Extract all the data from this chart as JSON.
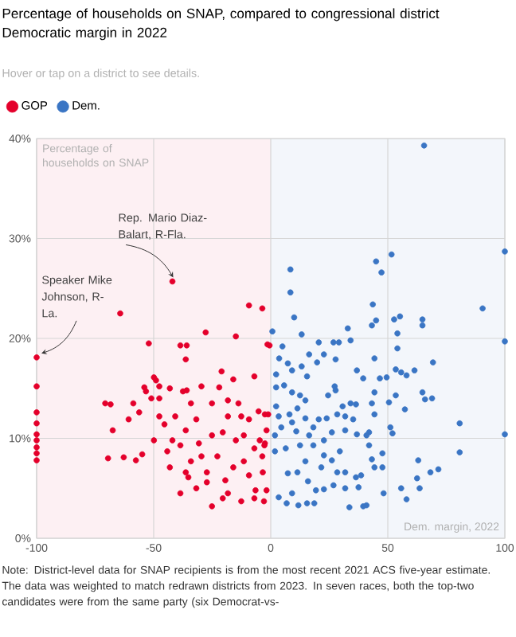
{
  "chart_data": {
    "type": "scatter",
    "title": "Percentage of households on SNAP, compared to congressional district Democratic margin in 2022",
    "subtitle": "Hover or tap on a district to see details.",
    "xlabel": "Dem. margin, 2022",
    "ylabel": "Percentage of households on SNAP",
    "xlim": [
      -100,
      100
    ],
    "ylim": [
      0,
      40
    ],
    "xticks": [
      -100,
      -50,
      0,
      50,
      100
    ],
    "yticks": [
      {
        "value": 0,
        "label": "0%"
      },
      {
        "value": 10,
        "label": "10%"
      },
      {
        "value": 20,
        "label": "20%"
      },
      {
        "value": 30,
        "label": "30%"
      },
      {
        "value": 40,
        "label": "40%"
      }
    ],
    "grid": true,
    "legend": "top left",
    "bands": [
      {
        "axis": "x",
        "from": -100,
        "to": 0,
        "color": "#fdf0f3"
      },
      {
        "axis": "x",
        "from": 0,
        "to": 100,
        "color": "#f3f6fb"
      }
    ],
    "annotations": [
      {
        "text": "Rep. Mario Diaz-Balart, R-Fla.",
        "x": -42,
        "y": 25.7
      },
      {
        "text": "Speaker Mike Johnson, R-La.",
        "x": -100,
        "y": 18.1
      },
      "Note: District-level data for SNAP recipients is from the most recent 2021 ACS five-year estimate. The data was weighted to match redrawn districts from 2023. In seven races, both the top-two candidates were from the same party (six Democrat-vs-"
    ],
    "series": [
      {
        "name": "GOP",
        "color": "#e4002b",
        "x": [
          -100,
          -100,
          -100,
          -100,
          -100,
          -100,
          -100,
          -100,
          -100,
          -42,
          -64.3,
          -52.1,
          -70.7,
          -68.4,
          -67.5,
          -69.5,
          -62.8,
          -57.6,
          -54.9,
          -60.7,
          -58.7,
          -56.2,
          -54,
          -53.3,
          -49.9,
          -49,
          -51,
          -47.6,
          -47.6,
          -43.1,
          -37.5,
          -35.9,
          -38.6,
          -35.9,
          -36.3,
          -27.8,
          -14.9,
          -9.3,
          -3.6,
          -1.4,
          -21,
          -16,
          -29.6,
          -7,
          -49.9,
          -44.2,
          -38.6,
          -35.2,
          -25.1,
          -20.5,
          -18.3,
          -12.6,
          -7,
          -2.9,
          -9.3,
          -11.5,
          -3.6,
          -4.7,
          -2.5,
          -2.5,
          -9.3,
          -13.8,
          -18.3,
          -25.1,
          -31.8,
          -36.3,
          -40.8,
          -45.4,
          -43.1,
          -29.6,
          -22.8,
          -27.3,
          -16,
          -34.1,
          -30.7,
          -25.1,
          -20.5,
          -14.9,
          -11.5,
          -38.6,
          -47.6,
          -34.1,
          -22,
          -18.3,
          -7,
          -27.3,
          -31.8,
          -19.4,
          -6.5,
          -36.3,
          -42,
          -12.6,
          -5.2,
          -0.5,
          -1.1,
          -1.8,
          -2.7,
          -3.4,
          -1.8
        ],
        "values": [
          18.1,
          15.2,
          12.6,
          11.5,
          10.4,
          9.8,
          9.1,
          8.5,
          7.8,
          25.7,
          22.5,
          19.5,
          13.5,
          13.4,
          10.8,
          8,
          8.1,
          7.8,
          8.4,
          11.9,
          13.5,
          12.6,
          15.1,
          14.7,
          16.1,
          15.8,
          14,
          14,
          15.2,
          15,
          14.7,
          14.8,
          19.3,
          19.3,
          17.9,
          20.6,
          20.2,
          23.3,
          23,
          19.4,
          16.7,
          15.9,
          15.2,
          16.2,
          9.8,
          8.7,
          4.5,
          6.1,
          3.2,
          4,
          4.5,
          3.7,
          4,
          3.7,
          6.3,
          7.7,
          8.2,
          9.8,
          9.5,
          12.4,
          11.9,
          13.5,
          12.2,
          13.5,
          11.9,
          10.8,
          12.2,
          11.4,
          7.1,
          8.2,
          8.2,
          6.6,
          7.1,
          7.7,
          9.5,
          10.3,
          10.6,
          9.8,
          10.3,
          9.3,
          12.2,
          13.5,
          15.1,
          13.8,
          9,
          5.6,
          5,
          5.8,
          4.8,
          6.6,
          9.8,
          12.2,
          12.7,
          19.3,
          12.4,
          10.8,
          9.3,
          6.6,
          4.8
        ]
      },
      {
        "name": "Dem.",
        "color": "#3a75c4",
        "x": [
          65.5,
          100,
          51.6,
          45,
          47.3,
          8.4,
          8.4,
          90.5,
          43.6,
          45,
          43.2,
          52.7,
          55.2,
          64.8,
          64.8,
          54.1,
          100,
          0.7,
          10,
          13.2,
          32.9,
          34.1,
          26.8,
          29.1,
          20.5,
          5,
          54.1,
          44.3,
          69.3,
          36.8,
          39.5,
          46.6,
          49.5,
          53.4,
          55.7,
          58,
          61.4,
          3.6,
          7.3,
          9.1,
          13.2,
          15.5,
          16.4,
          19.8,
          22.7,
          27.7,
          2.3,
          2.3,
          5.7,
          9.1,
          12.5,
          14.8,
          27.3,
          27.7,
          24.5,
          44.3,
          53.4,
          50.5,
          43.2,
          64.8,
          65.9,
          68.9,
          57.3,
          44.3,
          80.7,
          100,
          80.7,
          51.1,
          52,
          42,
          40.9,
          34.1,
          36.4,
          30.7,
          31.8,
          35.2,
          28.4,
          23.9,
          20.5,
          18.2,
          14.8,
          11.4,
          8,
          3.4,
          2.3,
          4.5,
          9.1,
          10.9,
          16.4,
          22.7,
          26.1,
          31.8,
          36.8,
          42,
          47.7,
          43.2,
          44.3,
          38.6,
          36.4,
          47.7,
          63,
          71.6,
          68.2,
          62.5,
          63.6,
          55.7,
          58,
          48.2,
          40.9,
          39.5,
          33.6,
          37.5,
          31.8,
          26.8,
          22.7,
          19.3,
          15.5,
          18.6,
          11.8,
          6.8,
          3.4,
          9.1,
          7.3,
          11.4,
          14.8,
          21.6,
          26.1,
          29.5,
          31.8,
          22.7,
          6.4,
          1.8,
          1.8,
          12.5,
          18.2,
          28.4,
          15.9
        ],
        "values": [
          39.3,
          28.7,
          28.4,
          27.7,
          26.6,
          26.9,
          24.6,
          23,
          23.4,
          21.8,
          21.3,
          21.9,
          22.2,
          21.9,
          21.3,
          20.5,
          19.7,
          20.7,
          22.1,
          20.4,
          21,
          19.8,
          19.6,
          19.6,
          19.6,
          19.2,
          19,
          18,
          17.6,
          16.8,
          16,
          16,
          16.1,
          16.9,
          16.6,
          16.3,
          16.8,
          18,
          17.5,
          16.8,
          17.2,
          16.2,
          18.4,
          17.6,
          18.4,
          17.9,
          16.4,
          15.1,
          15.3,
          14.6,
          14.3,
          13.8,
          15.2,
          14.8,
          14.3,
          14.6,
          14.3,
          13.6,
          13.5,
          14.6,
          13.9,
          14,
          12.9,
          12.4,
          11.5,
          10.4,
          8.6,
          11.1,
          10.5,
          10.6,
          10.3,
          13.5,
          13.4,
          13.2,
          12.2,
          11.9,
          12.4,
          12,
          11.9,
          11.1,
          12,
          13,
          12.4,
          12.2,
          13.2,
          11.1,
          11.6,
          10.7,
          10.3,
          9.8,
          10.6,
          10.8,
          10.4,
          9.3,
          8.5,
          7.9,
          7.1,
          6.3,
          6.1,
          7.1,
          7.8,
          6.9,
          6.6,
          6,
          5,
          5,
          3.9,
          4.5,
          3.3,
          3.2,
          3.1,
          5.1,
          5,
          5.3,
          4.9,
          4.8,
          3.5,
          3.5,
          3.3,
          3.5,
          4.1,
          4.5,
          6.5,
          6.6,
          7.7,
          7.1,
          7.8,
          8.7,
          6.6,
          8.3,
          9,
          8.7,
          10.3,
          9.3,
          9.3,
          6.6,
          5.7
        ]
      }
    ]
  }
}
